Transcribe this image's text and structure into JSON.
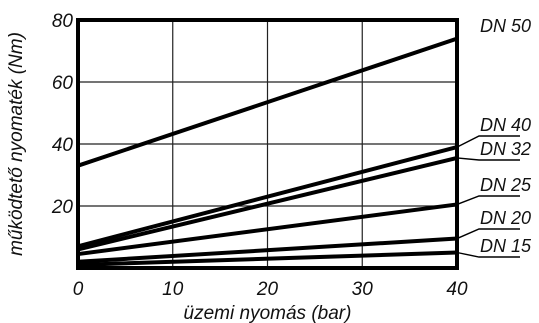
{
  "chart_data": {
    "type": "line",
    "title": "",
    "xlabel": "üzemi nyomás (bar)",
    "ylabel": "működtető nyomaték (Nm)",
    "xlim": [
      0,
      40
    ],
    "ylim": [
      0,
      80
    ],
    "xticks": [
      "0",
      "10",
      "20",
      "30",
      "40"
    ],
    "yticks": [
      "20",
      "40",
      "60",
      "80"
    ],
    "grid": true,
    "series": [
      {
        "name": "DN 50",
        "x": [
          0,
          40
        ],
        "y": [
          33,
          74
        ]
      },
      {
        "name": "DN 40",
        "x": [
          0,
          40
        ],
        "y": [
          7,
          39
        ]
      },
      {
        "name": "DN 32",
        "x": [
          0,
          40
        ],
        "y": [
          6,
          35.5
        ]
      },
      {
        "name": "DN 25",
        "x": [
          0,
          40
        ],
        "y": [
          4.5,
          20.5
        ]
      },
      {
        "name": "DN 20",
        "x": [
          0,
          40
        ],
        "y": [
          2,
          9.5
        ]
      },
      {
        "name": "DN 15",
        "x": [
          0,
          40
        ],
        "y": [
          1,
          5
        ]
      }
    ]
  }
}
